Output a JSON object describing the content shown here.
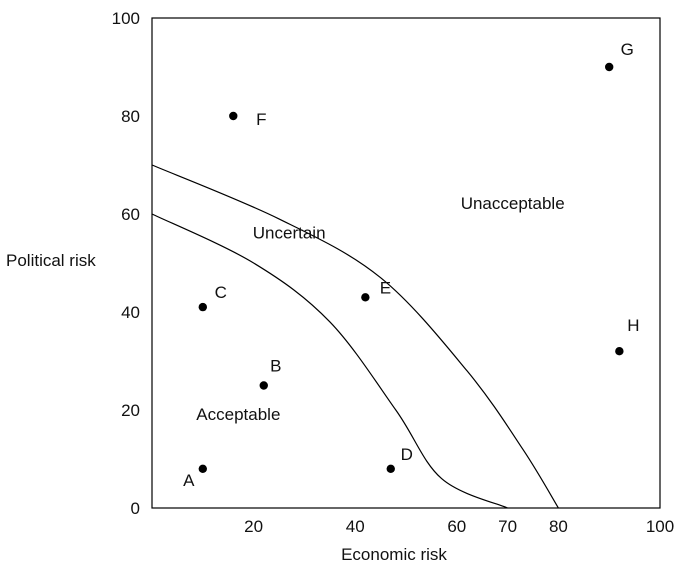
{
  "chart_data": {
    "type": "scatter",
    "xlabel": "Economic risk",
    "ylabel": "Political risk",
    "xlim": [
      0,
      100
    ],
    "ylim": [
      0,
      100
    ],
    "x_ticks": [
      20,
      40,
      60,
      70,
      80,
      100
    ],
    "y_ticks": [
      0,
      20,
      40,
      60,
      80,
      100
    ],
    "grid": false,
    "points": [
      {
        "label": "A",
        "x": 10,
        "y": 8
      },
      {
        "label": "B",
        "x": 22,
        "y": 25
      },
      {
        "label": "C",
        "x": 10,
        "y": 41
      },
      {
        "label": "D",
        "x": 47,
        "y": 8
      },
      {
        "label": "E",
        "x": 42,
        "y": 43
      },
      {
        "label": "F",
        "x": 16,
        "y": 80
      },
      {
        "label": "G",
        "x": 90,
        "y": 90
      },
      {
        "label": "H",
        "x": 92,
        "y": 32
      }
    ],
    "boundaries": [
      {
        "name": "lower",
        "points": [
          [
            0,
            60
          ],
          [
            20,
            50
          ],
          [
            35,
            38
          ],
          [
            48,
            20
          ],
          [
            57,
            6
          ],
          [
            70,
            0
          ]
        ]
      },
      {
        "name": "upper",
        "points": [
          [
            0,
            70
          ],
          [
            25,
            59
          ],
          [
            45,
            47
          ],
          [
            62,
            28
          ],
          [
            73,
            12
          ],
          [
            80,
            0
          ]
        ]
      }
    ],
    "regions": [
      {
        "text": "Unacceptable",
        "x": 71,
        "y": 61
      },
      {
        "text": "Uncertain",
        "x": 27,
        "y": 55
      },
      {
        "text": "Acceptable",
        "x": 17,
        "y": 18
      }
    ]
  }
}
